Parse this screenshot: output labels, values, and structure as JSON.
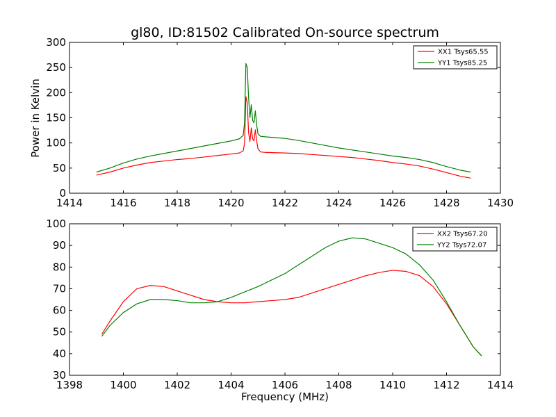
{
  "chart_data": [
    {
      "type": "line",
      "title": "gl80, ID:81502 Calibrated On-source spectrum",
      "xlabel": "",
      "ylabel": "Power in Kelvin",
      "xlim": [
        1414,
        1430
      ],
      "ylim": [
        0,
        300
      ],
      "xticks": [
        1414,
        1416,
        1418,
        1420,
        1422,
        1424,
        1426,
        1428,
        1430
      ],
      "yticks": [
        0,
        50,
        100,
        150,
        200,
        250,
        300
      ],
      "grid": false,
      "legend_position": "top-right",
      "series": [
        {
          "name": "XX1 Tsys65.55",
          "color": "#ff0000",
          "points": [
            [
              1415.0,
              36
            ],
            [
              1415.5,
              42
            ],
            [
              1416.0,
              50
            ],
            [
              1416.5,
              56
            ],
            [
              1417.0,
              61
            ],
            [
              1417.5,
              64
            ],
            [
              1418.0,
              67
            ],
            [
              1418.5,
              69
            ],
            [
              1419.0,
              72
            ],
            [
              1419.5,
              75
            ],
            [
              1420.0,
              78
            ],
            [
              1420.3,
              80
            ],
            [
              1420.45,
              84
            ],
            [
              1420.5,
              100
            ],
            [
              1420.55,
              192
            ],
            [
              1420.6,
              180
            ],
            [
              1420.65,
              120
            ],
            [
              1420.7,
              103
            ],
            [
              1420.75,
              130
            ],
            [
              1420.8,
              108
            ],
            [
              1420.85,
              104
            ],
            [
              1420.9,
              126
            ],
            [
              1420.95,
              104
            ],
            [
              1421.0,
              88
            ],
            [
              1421.1,
              82
            ],
            [
              1421.3,
              81
            ],
            [
              1422.0,
              80
            ],
            [
              1422.5,
              79
            ],
            [
              1423.0,
              77
            ],
            [
              1423.5,
              75
            ],
            [
              1424.0,
              73
            ],
            [
              1424.5,
              71
            ],
            [
              1425.0,
              68
            ],
            [
              1425.5,
              65
            ],
            [
              1426.0,
              61
            ],
            [
              1426.5,
              58
            ],
            [
              1427.0,
              54
            ],
            [
              1427.5,
              48
            ],
            [
              1428.0,
              41
            ],
            [
              1428.5,
              34
            ],
            [
              1428.9,
              30
            ]
          ]
        },
        {
          "name": "YY1 Tsys85.25",
          "color": "#008000",
          "points": [
            [
              1415.0,
              42
            ],
            [
              1415.5,
              50
            ],
            [
              1416.0,
              60
            ],
            [
              1416.5,
              68
            ],
            [
              1417.0,
              74
            ],
            [
              1417.5,
              79
            ],
            [
              1418.0,
              84
            ],
            [
              1418.5,
              89
            ],
            [
              1419.0,
              94
            ],
            [
              1419.5,
              99
            ],
            [
              1420.0,
              104
            ],
            [
              1420.3,
              108
            ],
            [
              1420.45,
              115
            ],
            [
              1420.5,
              140
            ],
            [
              1420.55,
              258
            ],
            [
              1420.6,
              250
            ],
            [
              1420.65,
              190
            ],
            [
              1420.7,
              150
            ],
            [
              1420.75,
              176
            ],
            [
              1420.8,
              145
            ],
            [
              1420.85,
              140
            ],
            [
              1420.9,
              164
            ],
            [
              1420.95,
              135
            ],
            [
              1421.0,
              118
            ],
            [
              1421.1,
              113
            ],
            [
              1421.3,
              112
            ],
            [
              1422.0,
              109
            ],
            [
              1422.5,
              105
            ],
            [
              1423.0,
              100
            ],
            [
              1423.5,
              95
            ],
            [
              1424.0,
              90
            ],
            [
              1424.5,
              86
            ],
            [
              1425.0,
              82
            ],
            [
              1425.5,
              78
            ],
            [
              1426.0,
              74
            ],
            [
              1426.5,
              71
            ],
            [
              1427.0,
              67
            ],
            [
              1427.5,
              61
            ],
            [
              1428.0,
              53
            ],
            [
              1428.5,
              46
            ],
            [
              1428.9,
              42
            ]
          ]
        }
      ]
    },
    {
      "type": "line",
      "title": "",
      "xlabel": "Frequency (MHz)",
      "ylabel": "",
      "xlim": [
        1398,
        1414
      ],
      "ylim": [
        30,
        100
      ],
      "xticks": [
        1398,
        1400,
        1402,
        1404,
        1406,
        1408,
        1410,
        1412,
        1414
      ],
      "yticks": [
        30,
        40,
        50,
        60,
        70,
        80,
        90,
        100
      ],
      "grid": false,
      "legend_position": "top-right",
      "series": [
        {
          "name": "XX2 Tsys67.20",
          "color": "#ff0000",
          "points": [
            [
              1399.2,
              49
            ],
            [
              1399.5,
              55
            ],
            [
              1400.0,
              64
            ],
            [
              1400.5,
              70
            ],
            [
              1401.0,
              71.5
            ],
            [
              1401.5,
              71
            ],
            [
              1402.0,
              69
            ],
            [
              1402.5,
              67
            ],
            [
              1403.0,
              65
            ],
            [
              1403.5,
              64
            ],
            [
              1404.0,
              63.5
            ],
            [
              1404.5,
              63.5
            ],
            [
              1405.0,
              64
            ],
            [
              1405.5,
              64.5
            ],
            [
              1406.0,
              65
            ],
            [
              1406.5,
              66
            ],
            [
              1407.0,
              68
            ],
            [
              1407.5,
              70
            ],
            [
              1408.0,
              72
            ],
            [
              1408.5,
              74
            ],
            [
              1409.0,
              76
            ],
            [
              1409.5,
              77.5
            ],
            [
              1410.0,
              78.5
            ],
            [
              1410.5,
              78
            ],
            [
              1411.0,
              76
            ],
            [
              1411.5,
              71
            ],
            [
              1412.0,
              63
            ],
            [
              1412.5,
              53
            ],
            [
              1413.0,
              43
            ],
            [
              1413.3,
              39
            ]
          ]
        },
        {
          "name": "YY2 Tsys72.07",
          "color": "#008000",
          "points": [
            [
              1399.2,
              48
            ],
            [
              1399.5,
              53
            ],
            [
              1400.0,
              59
            ],
            [
              1400.5,
              63
            ],
            [
              1401.0,
              65
            ],
            [
              1401.5,
              65
            ],
            [
              1402.0,
              64.5
            ],
            [
              1402.5,
              63.5
            ],
            [
              1403.0,
              63.5
            ],
            [
              1403.5,
              64
            ],
            [
              1404.0,
              66
            ],
            [
              1404.5,
              68.5
            ],
            [
              1405.0,
              71
            ],
            [
              1405.5,
              74
            ],
            [
              1406.0,
              77
            ],
            [
              1406.5,
              81
            ],
            [
              1407.0,
              85
            ],
            [
              1407.5,
              89
            ],
            [
              1408.0,
              92
            ],
            [
              1408.5,
              93.5
            ],
            [
              1409.0,
              93
            ],
            [
              1409.5,
              91
            ],
            [
              1410.0,
              89
            ],
            [
              1410.5,
              86
            ],
            [
              1411.0,
              81
            ],
            [
              1411.5,
              74
            ],
            [
              1412.0,
              64
            ],
            [
              1412.5,
              53
            ],
            [
              1413.0,
              43
            ],
            [
              1413.3,
              39
            ]
          ]
        }
      ]
    }
  ]
}
